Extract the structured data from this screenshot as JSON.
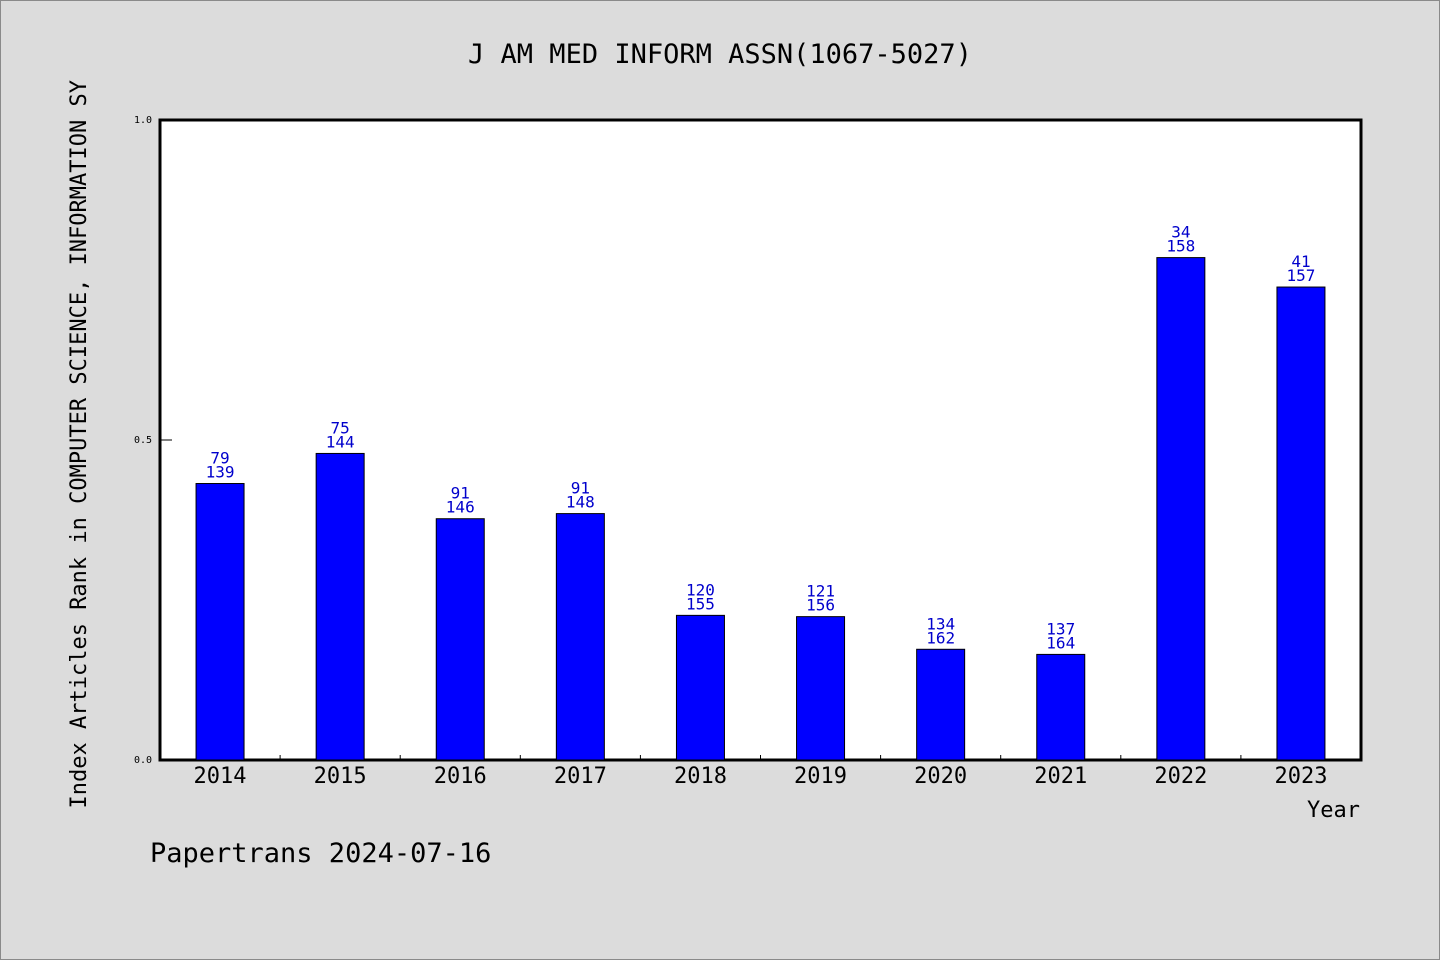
{
  "chart_data": {
    "type": "bar",
    "title": "J AM MED INFORM ASSN(1067-5027)",
    "ylabel": "Index Articles Rank in COMPUTER SCIENCE, INFORMATION SY",
    "xlabel": "Year",
    "footer": "Papertrans 2024-07-16",
    "categories": [
      "2014",
      "2015",
      "2016",
      "2017",
      "2018",
      "2019",
      "2020",
      "2021",
      "2022",
      "2023"
    ],
    "values": [
      0.432,
      0.479,
      0.377,
      0.385,
      0.226,
      0.224,
      0.173,
      0.165,
      0.785,
      0.739
    ],
    "labels_top": [
      "79",
      "75",
      "91",
      "91",
      "120",
      "121",
      "134",
      "137",
      "34",
      "41"
    ],
    "labels_bottom": [
      "139",
      "144",
      "146",
      "148",
      "155",
      "156",
      "162",
      "164",
      "158",
      "157"
    ],
    "ylim": [
      0,
      1
    ],
    "yticks": [
      "0.0",
      "0.5",
      "1.0"
    ],
    "bar_color": "#0000ff",
    "label_color": "#0000cc",
    "background": "#dcdcdc",
    "plot_background": "#ffffff",
    "grid": false
  }
}
